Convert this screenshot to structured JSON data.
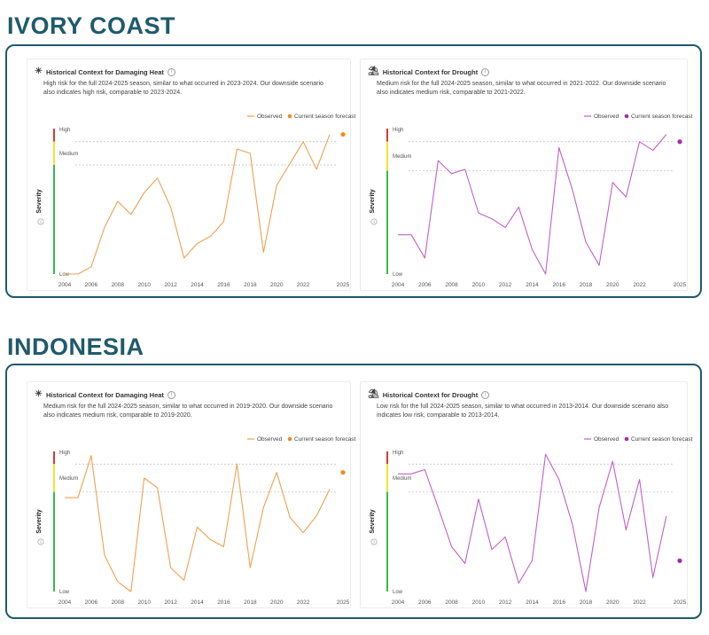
{
  "sections": [
    {
      "title": "IVORY COAST",
      "cards": [
        {
          "title": "Historical Context for Damaging Heat",
          "icon": "sun-icon",
          "description": "High risk for the full 2024-2025 season, similar to what occurred in 2023-2024. Our downside scenario also indicates high risk, comparable to 2023-2024."
        },
        {
          "title": "Historical Context for Drought",
          "icon": "drought-icon",
          "description": "Medium risk for the full 2024-2025 season, similar to what occurred in 2021-2022. Our downside scenario also indicates medium risk, comparable to 2021-2022."
        }
      ]
    },
    {
      "title": "INDONESIA",
      "cards": [
        {
          "title": "Historical Context for Damaging Heat",
          "icon": "sun-icon",
          "description": "Medium risk for the full 2024-2025 season, similar to what occurred in 2019-2020. Our downside scenario also indicates medium risk, comparable to 2019-2020."
        },
        {
          "title": "Historical Context for Drought",
          "icon": "drought-icon",
          "description": "Low risk for the full 2024-2025 season, similar to what occurred in 2013-2014. Our downside scenario also indicates low risk, comparable to 2013-2014."
        }
      ]
    }
  ],
  "chart_data": [
    {
      "type": "line",
      "chart_ref": "ivory-coast-heat",
      "x": [
        2004,
        2005,
        2006,
        2007,
        2008,
        2009,
        2010,
        2011,
        2012,
        2013,
        2014,
        2015,
        2016,
        2017,
        2018,
        2019,
        2020,
        2021,
        2022,
        2023,
        2024
      ],
      "series": [
        {
          "name": "Observed",
          "color": "#f0a050",
          "values": [
            0.0,
            0.0,
            0.05,
            0.32,
            0.5,
            0.41,
            0.56,
            0.66,
            0.46,
            0.11,
            0.21,
            0.26,
            0.36,
            0.86,
            0.83,
            0.15,
            0.61,
            0.76,
            0.91,
            0.72,
            0.96
          ]
        }
      ],
      "forecast": {
        "name": "Current season forecast",
        "x": 2025,
        "value": 0.96,
        "color": "#f08a24"
      },
      "x_ticks": [
        2004,
        2006,
        2008,
        2010,
        2012,
        2014,
        2016,
        2018,
        2020,
        2022,
        2025
      ],
      "ylabel": "Severity",
      "y_levels": [
        "High",
        "Medium",
        "Low"
      ],
      "thresholds": [
        0.75,
        0.91
      ],
      "ylim": [
        0,
        1
      ],
      "legend": "top-right"
    },
    {
      "type": "line",
      "chart_ref": "ivory-coast-drought",
      "x": [
        2004,
        2005,
        2006,
        2007,
        2008,
        2009,
        2010,
        2011,
        2012,
        2013,
        2014,
        2015,
        2016,
        2017,
        2018,
        2019,
        2020,
        2021,
        2022,
        2023,
        2024
      ],
      "series": [
        {
          "name": "Observed",
          "color": "#c060c8",
          "values": [
            0.27,
            0.27,
            0.11,
            0.78,
            0.69,
            0.72,
            0.42,
            0.38,
            0.32,
            0.46,
            0.17,
            0.0,
            0.87,
            0.58,
            0.22,
            0.06,
            0.63,
            0.53,
            0.91,
            0.85,
            0.96
          ]
        }
      ],
      "forecast": {
        "name": "Current season forecast",
        "x": 2025,
        "value": 0.91,
        "color": "#a030a8"
      },
      "x_ticks": [
        2004,
        2006,
        2008,
        2010,
        2012,
        2014,
        2016,
        2018,
        2020,
        2022,
        2025
      ],
      "ylabel": "Severity",
      "y_levels": [
        "High",
        "Medium",
        "Low"
      ],
      "thresholds": [
        0.71,
        0.91
      ],
      "ylim": [
        0,
        1
      ],
      "legend": "top-right"
    },
    {
      "type": "line",
      "chart_ref": "indonesia-heat",
      "x": [
        2004,
        2005,
        2006,
        2007,
        2008,
        2009,
        2010,
        2011,
        2012,
        2013,
        2014,
        2015,
        2016,
        2017,
        2018,
        2019,
        2020,
        2021,
        2022,
        2023,
        2024
      ],
      "series": [
        {
          "name": "Observed",
          "color": "#f0a050",
          "values": [
            0.67,
            0.67,
            0.97,
            0.26,
            0.07,
            0.0,
            0.81,
            0.74,
            0.17,
            0.08,
            0.46,
            0.37,
            0.32,
            0.91,
            0.17,
            0.6,
            0.85,
            0.53,
            0.42,
            0.54,
            0.73
          ]
        }
      ],
      "forecast": {
        "name": "Current season forecast",
        "x": 2025,
        "value": 0.85,
        "color": "#f08a24"
      },
      "x_ticks": [
        2004,
        2006,
        2008,
        2010,
        2012,
        2014,
        2016,
        2018,
        2020,
        2022,
        2025
      ],
      "ylabel": "Severity",
      "y_levels": [
        "High",
        "Medium",
        "Low"
      ],
      "thresholds": [
        0.71,
        0.91
      ],
      "ylim": [
        0,
        1
      ],
      "legend": "top-right"
    },
    {
      "type": "line",
      "chart_ref": "indonesia-drought",
      "x": [
        2004,
        2005,
        2006,
        2007,
        2008,
        2009,
        2010,
        2011,
        2012,
        2013,
        2014,
        2015,
        2016,
        2017,
        2018,
        2019,
        2020,
        2021,
        2022,
        2023,
        2024
      ],
      "series": [
        {
          "name": "Observed",
          "color": "#c060c8",
          "values": [
            0.84,
            0.84,
            0.87,
            0.6,
            0.32,
            0.2,
            0.66,
            0.3,
            0.39,
            0.06,
            0.22,
            0.98,
            0.8,
            0.48,
            0.0,
            0.6,
            0.93,
            0.44,
            0.8,
            0.1,
            0.54
          ]
        }
      ],
      "forecast": {
        "name": "Current season forecast",
        "x": 2025,
        "value": 0.22,
        "color": "#a030a8"
      },
      "x_ticks": [
        2004,
        2006,
        2008,
        2010,
        2012,
        2014,
        2016,
        2018,
        2020,
        2022,
        2025
      ],
      "ylabel": "Severity",
      "y_levels": [
        "High",
        "Medium",
        "Low"
      ],
      "thresholds": [
        0.71,
        0.91
      ],
      "ylim": [
        0,
        1
      ],
      "legend": "top-right"
    }
  ]
}
